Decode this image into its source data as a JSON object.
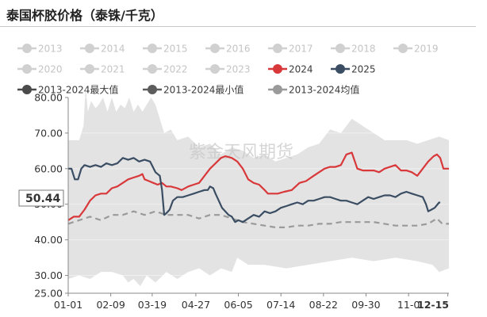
{
  "header": {
    "title": "泰国杯胶价格（泰铢/千克）"
  },
  "watermark": "紫金天风期货",
  "cursor_value": "50.44",
  "colors": {
    "y2024": "#d9383a",
    "y2025": "#3a4d63",
    "muted": "#d0d0d0",
    "band": "#e3e3e3",
    "max": "#4a4a4a",
    "min": "#5c5c5c",
    "avg": "#9a9a9a"
  },
  "chart_data": {
    "type": "line",
    "title": "泰国杯胶价格（泰铢/千克）",
    "ylim": [
      25,
      80
    ],
    "y_ticks": [
      {
        "v": 80,
        "label": "80.00"
      },
      {
        "v": 70,
        "label": "70.00"
      },
      {
        "v": 60,
        "label": "60.00"
      },
      {
        "v": 50,
        "label": "50.00"
      },
      {
        "v": 40,
        "label": "40.00"
      },
      {
        "v": 30,
        "label": "30.00"
      },
      {
        "v": 25,
        "label": "25.00"
      }
    ],
    "x_ticks": [
      {
        "d": 0,
        "label": "01-01"
      },
      {
        "d": 39,
        "label": "02-09"
      },
      {
        "d": 77,
        "label": "03-19"
      },
      {
        "d": 117,
        "label": "04-27"
      },
      {
        "d": 156,
        "label": "06-05"
      },
      {
        "d": 195,
        "label": "07-14"
      },
      {
        "d": 234,
        "label": "08-22"
      },
      {
        "d": 273,
        "label": "09-30"
      },
      {
        "d": 312,
        "label": "11-0"
      },
      {
        "d": 348,
        "label": "12-15"
      }
    ],
    "legend": [
      {
        "name": "2013",
        "muted": true
      },
      {
        "name": "2014",
        "muted": true
      },
      {
        "name": "2015",
        "muted": true
      },
      {
        "name": "2016",
        "muted": true
      },
      {
        "name": "2017",
        "muted": true
      },
      {
        "name": "2018",
        "muted": true
      },
      {
        "name": "2019",
        "muted": true
      },
      {
        "name": "2020",
        "muted": true
      },
      {
        "name": "2021",
        "muted": true
      },
      {
        "name": "2022",
        "muted": true
      },
      {
        "name": "2023",
        "muted": true
      },
      {
        "name": "2024",
        "muted": false
      },
      {
        "name": "2025",
        "muted": false
      },
      {
        "name": "2013-2024最大值",
        "muted": false
      },
      {
        "name": "2013-2024最小值",
        "muted": false
      },
      {
        "name": "2013-2024均值",
        "muted": false
      }
    ],
    "series": [
      {
        "name": "2013-2024最大值",
        "kind": "band-top",
        "points": [
          [
            0,
            68
          ],
          [
            10,
            68
          ],
          [
            14,
            72
          ],
          [
            16,
            83
          ],
          [
            18,
            76
          ],
          [
            21,
            79
          ],
          [
            25,
            77
          ],
          [
            28,
            78
          ],
          [
            32,
            80
          ],
          [
            36,
            76
          ],
          [
            40,
            80
          ],
          [
            44,
            76
          ],
          [
            48,
            78
          ],
          [
            52,
            77
          ],
          [
            56,
            80
          ],
          [
            60,
            76
          ],
          [
            64,
            78
          ],
          [
            68,
            76
          ],
          [
            72,
            78
          ],
          [
            76,
            80
          ],
          [
            80,
            78
          ],
          [
            84,
            74
          ],
          [
            88,
            70
          ],
          [
            94,
            71
          ],
          [
            100,
            68
          ],
          [
            110,
            69
          ],
          [
            120,
            66
          ],
          [
            130,
            67
          ],
          [
            140,
            64
          ],
          [
            150,
            66
          ],
          [
            160,
            65
          ],
          [
            170,
            63
          ],
          [
            180,
            64
          ],
          [
            190,
            62
          ],
          [
            200,
            63
          ],
          [
            210,
            64
          ],
          [
            220,
            66
          ],
          [
            230,
            67
          ],
          [
            240,
            71
          ],
          [
            250,
            70
          ],
          [
            260,
            74
          ],
          [
            270,
            72
          ],
          [
            280,
            70
          ],
          [
            290,
            68
          ],
          [
            300,
            68
          ],
          [
            310,
            68
          ],
          [
            320,
            67
          ],
          [
            330,
            68
          ],
          [
            340,
            69
          ],
          [
            349,
            68
          ]
        ]
      },
      {
        "name": "2013-2024最小值",
        "kind": "band-bottom",
        "points": [
          [
            0,
            29
          ],
          [
            10,
            30
          ],
          [
            20,
            29
          ],
          [
            30,
            31
          ],
          [
            40,
            31
          ],
          [
            50,
            30
          ],
          [
            55,
            28
          ],
          [
            60,
            29
          ],
          [
            66,
            27
          ],
          [
            72,
            30
          ],
          [
            80,
            28
          ],
          [
            90,
            31
          ],
          [
            100,
            29
          ],
          [
            110,
            31
          ],
          [
            120,
            32
          ],
          [
            130,
            30
          ],
          [
            140,
            32
          ],
          [
            150,
            31
          ],
          [
            155,
            35
          ],
          [
            165,
            33
          ],
          [
            180,
            33
          ],
          [
            200,
            32
          ],
          [
            220,
            33
          ],
          [
            240,
            34
          ],
          [
            260,
            35
          ],
          [
            280,
            34
          ],
          [
            300,
            35
          ],
          [
            320,
            34
          ],
          [
            334,
            33
          ],
          [
            340,
            31
          ],
          [
            349,
            32
          ]
        ]
      },
      {
        "name": "2013-2024均值",
        "kind": "dashed",
        "points": [
          [
            0,
            44.5
          ],
          [
            10,
            45.5
          ],
          [
            20,
            46.5
          ],
          [
            30,
            45.5
          ],
          [
            40,
            47
          ],
          [
            50,
            47
          ],
          [
            60,
            48
          ],
          [
            70,
            47
          ],
          [
            80,
            48
          ],
          [
            90,
            47
          ],
          [
            100,
            47
          ],
          [
            110,
            47
          ],
          [
            120,
            46
          ],
          [
            130,
            47
          ],
          [
            140,
            47
          ],
          [
            150,
            46
          ],
          [
            160,
            45
          ],
          [
            170,
            44.5
          ],
          [
            180,
            44
          ],
          [
            190,
            43.5
          ],
          [
            200,
            43.5
          ],
          [
            210,
            44
          ],
          [
            220,
            44
          ],
          [
            230,
            44.5
          ],
          [
            240,
            44.5
          ],
          [
            250,
            45
          ],
          [
            260,
            45
          ],
          [
            270,
            45
          ],
          [
            280,
            45
          ],
          [
            290,
            44.5
          ],
          [
            300,
            44
          ],
          [
            310,
            44
          ],
          [
            320,
            44
          ],
          [
            330,
            44.5
          ],
          [
            338,
            46
          ],
          [
            343,
            44.5
          ],
          [
            349,
            44.5
          ]
        ]
      },
      {
        "name": "2024",
        "kind": "line",
        "points": [
          [
            0,
            45.5
          ],
          [
            5,
            46.5
          ],
          [
            10,
            46.5
          ],
          [
            15,
            48.5
          ],
          [
            20,
            51
          ],
          [
            25,
            52.5
          ],
          [
            30,
            53
          ],
          [
            35,
            53
          ],
          [
            40,
            54.5
          ],
          [
            45,
            55
          ],
          [
            50,
            56
          ],
          [
            55,
            57
          ],
          [
            60,
            57.5
          ],
          [
            65,
            58
          ],
          [
            68,
            58.5
          ],
          [
            70,
            57
          ],
          [
            74,
            56.5
          ],
          [
            78,
            56
          ],
          [
            82,
            55.5
          ],
          [
            86,
            56
          ],
          [
            90,
            55
          ],
          [
            94,
            55
          ],
          [
            100,
            54.5
          ],
          [
            104,
            54
          ],
          [
            110,
            55
          ],
          [
            115,
            55.5
          ],
          [
            120,
            56
          ],
          [
            125,
            58
          ],
          [
            130,
            60
          ],
          [
            135,
            61.5
          ],
          [
            140,
            63
          ],
          [
            144,
            63.5
          ],
          [
            150,
            63
          ],
          [
            155,
            62
          ],
          [
            160,
            60
          ],
          [
            165,
            57
          ],
          [
            170,
            56
          ],
          [
            175,
            55.5
          ],
          [
            180,
            54
          ],
          [
            183,
            53
          ],
          [
            187,
            53
          ],
          [
            192,
            53
          ],
          [
            198,
            53.5
          ],
          [
            205,
            54
          ],
          [
            212,
            56
          ],
          [
            218,
            56.5
          ],
          [
            225,
            58
          ],
          [
            230,
            59
          ],
          [
            235,
            60
          ],
          [
            240,
            60.5
          ],
          [
            245,
            60.5
          ],
          [
            250,
            61
          ],
          [
            255,
            64
          ],
          [
            260,
            64.5
          ],
          [
            265,
            60
          ],
          [
            270,
            59.5
          ],
          [
            275,
            59.5
          ],
          [
            280,
            59.5
          ],
          [
            285,
            59
          ],
          [
            290,
            60
          ],
          [
            295,
            60.5
          ],
          [
            300,
            61
          ],
          [
            305,
            59.5
          ],
          [
            310,
            59.5
          ],
          [
            315,
            59
          ],
          [
            320,
            58
          ],
          [
            325,
            60
          ],
          [
            330,
            62
          ],
          [
            335,
            63.5
          ],
          [
            338,
            64
          ],
          [
            341,
            63
          ],
          [
            344,
            60
          ],
          [
            347,
            60
          ],
          [
            349,
            60
          ]
        ]
      },
      {
        "name": "2025",
        "kind": "line",
        "points": [
          [
            0,
            60
          ],
          [
            3,
            60
          ],
          [
            6,
            57
          ],
          [
            9,
            57
          ],
          [
            12,
            60
          ],
          [
            15,
            61
          ],
          [
            20,
            60.5
          ],
          [
            25,
            61
          ],
          [
            30,
            60.5
          ],
          [
            35,
            61.5
          ],
          [
            40,
            61
          ],
          [
            45,
            61.5
          ],
          [
            50,
            63
          ],
          [
            55,
            62.5
          ],
          [
            60,
            63
          ],
          [
            65,
            62
          ],
          [
            70,
            62.5
          ],
          [
            75,
            62
          ],
          [
            80,
            59
          ],
          [
            84,
            58
          ],
          [
            86,
            54
          ],
          [
            88,
            47
          ],
          [
            90,
            47.5
          ],
          [
            93,
            48.5
          ],
          [
            96,
            51
          ],
          [
            100,
            52
          ],
          [
            105,
            52
          ],
          [
            110,
            52.5
          ],
          [
            115,
            53
          ],
          [
            120,
            53.5
          ],
          [
            125,
            54
          ],
          [
            128,
            54
          ],
          [
            130,
            55
          ],
          [
            133,
            54.5
          ],
          [
            135,
            53
          ],
          [
            138,
            51
          ],
          [
            141,
            49
          ],
          [
            144,
            48
          ],
          [
            147,
            47
          ],
          [
            150,
            46.5
          ],
          [
            153,
            45
          ],
          [
            156,
            45.5
          ],
          [
            160,
            45
          ],
          [
            165,
            46
          ],
          [
            170,
            47
          ],
          [
            175,
            46.5
          ],
          [
            180,
            48
          ],
          [
            185,
            47.5
          ],
          [
            190,
            48
          ],
          [
            195,
            49
          ],
          [
            200,
            49.5
          ],
          [
            205,
            50
          ],
          [
            210,
            50.5
          ],
          [
            215,
            50
          ],
          [
            220,
            51
          ],
          [
            225,
            51
          ],
          [
            230,
            51.5
          ],
          [
            235,
            52
          ],
          [
            240,
            52
          ],
          [
            245,
            51.5
          ],
          [
            250,
            51
          ],
          [
            255,
            51
          ],
          [
            260,
            50.5
          ],
          [
            265,
            50
          ],
          [
            270,
            51
          ],
          [
            275,
            52
          ],
          [
            280,
            51.5
          ],
          [
            285,
            52
          ],
          [
            290,
            52.5
          ],
          [
            295,
            52.5
          ],
          [
            300,
            52
          ],
          [
            305,
            53
          ],
          [
            310,
            53.5
          ],
          [
            315,
            53
          ],
          [
            320,
            52.5
          ],
          [
            325,
            52
          ],
          [
            328,
            50
          ],
          [
            330,
            48
          ],
          [
            333,
            48.5
          ],
          [
            336,
            49
          ],
          [
            340,
            50.5
          ],
          [
            341,
            50.44
          ]
        ]
      }
    ]
  }
}
